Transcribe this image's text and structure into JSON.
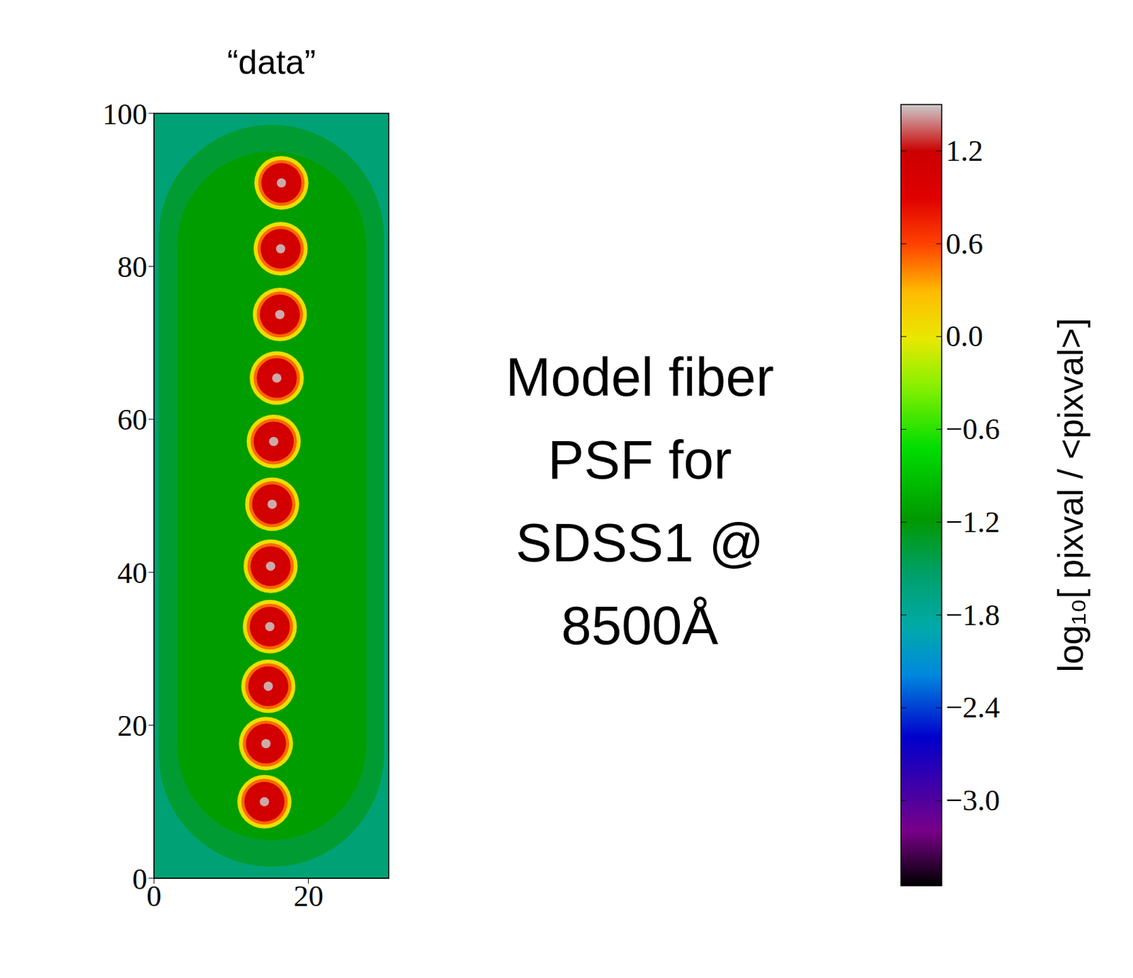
{
  "chart_data": {
    "type": "heatmap",
    "title": "“data”",
    "annotation": [
      "Model fiber",
      "PSF for",
      "SDSS1 @",
      "8500Å"
    ],
    "xlim": [
      0,
      30.4
    ],
    "xticks": [
      0,
      20
    ],
    "ylim": [
      0,
      100
    ],
    "yticks": [
      0,
      20,
      40,
      60,
      80,
      100
    ],
    "background": [
      {
        "value": -1.6,
        "x": [
          0,
          30.4
        ],
        "y": [
          0,
          100
        ]
      },
      {
        "value": -1.35,
        "x": [
          0.6,
          29.8
        ],
        "y": [
          1.5,
          98.5
        ]
      },
      {
        "value": -1.15,
        "x": [
          3,
          27.5
        ],
        "y": [
          5,
          95
        ]
      }
    ],
    "spots": {
      "x": [
        16.5,
        16.4,
        16.3,
        15.9,
        15.5,
        15.3,
        15.1,
        15.0,
        14.8,
        14.5,
        14.3
      ],
      "y": [
        90.9,
        82.3,
        73.7,
        65.4,
        57.1,
        48.9,
        40.8,
        32.9,
        25.1,
        17.6,
        10.0
      ],
      "rings": [
        {
          "radius": 3.5,
          "value": 0.05
        },
        {
          "radius": 3.0,
          "value": 0.5
        },
        {
          "radius": 2.6,
          "value": 1.1
        },
        {
          "radius": 0.6,
          "value": 1.45
        }
      ]
    },
    "colorbar": {
      "label": "log₁₀[ pixval / <pixval>]",
      "range": [
        -3.55,
        1.5
      ],
      "ticks": [
        {
          "value": -3,
          "label": "−3.0"
        },
        {
          "value": -2.4,
          "label": "−2.4"
        },
        {
          "value": -1.8,
          "label": "−1.8"
        },
        {
          "value": -1.2,
          "label": "−1.2"
        },
        {
          "value": -0.6,
          "label": "−0.6"
        },
        {
          "value": 0,
          "label": "0.0"
        },
        0.6,
        1.2
      ]
    }
  }
}
